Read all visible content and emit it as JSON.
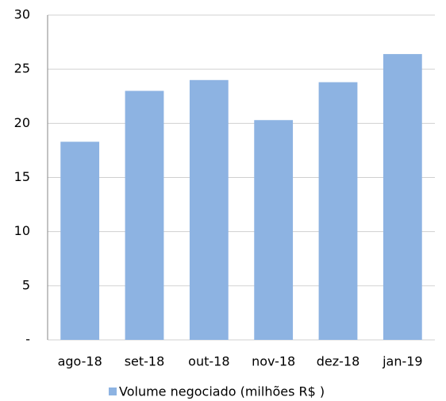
{
  "chart_data": {
    "type": "bar",
    "categories": [
      "ago-18",
      "set-18",
      "out-18",
      "nov-18",
      "dez-18",
      "jan-19"
    ],
    "series": [
      {
        "name": "Volume negociado (milhões R$ )",
        "color": "#8db3e2",
        "values": [
          18.3,
          23.0,
          24.0,
          20.3,
          23.8,
          26.4
        ]
      }
    ],
    "ylim": [
      0,
      30
    ],
    "yticks": [
      {
        "value": 0,
        "label": "-"
      },
      5,
      10,
      15,
      20,
      25,
      30
    ],
    "grid": true,
    "legend": "bottom"
  }
}
